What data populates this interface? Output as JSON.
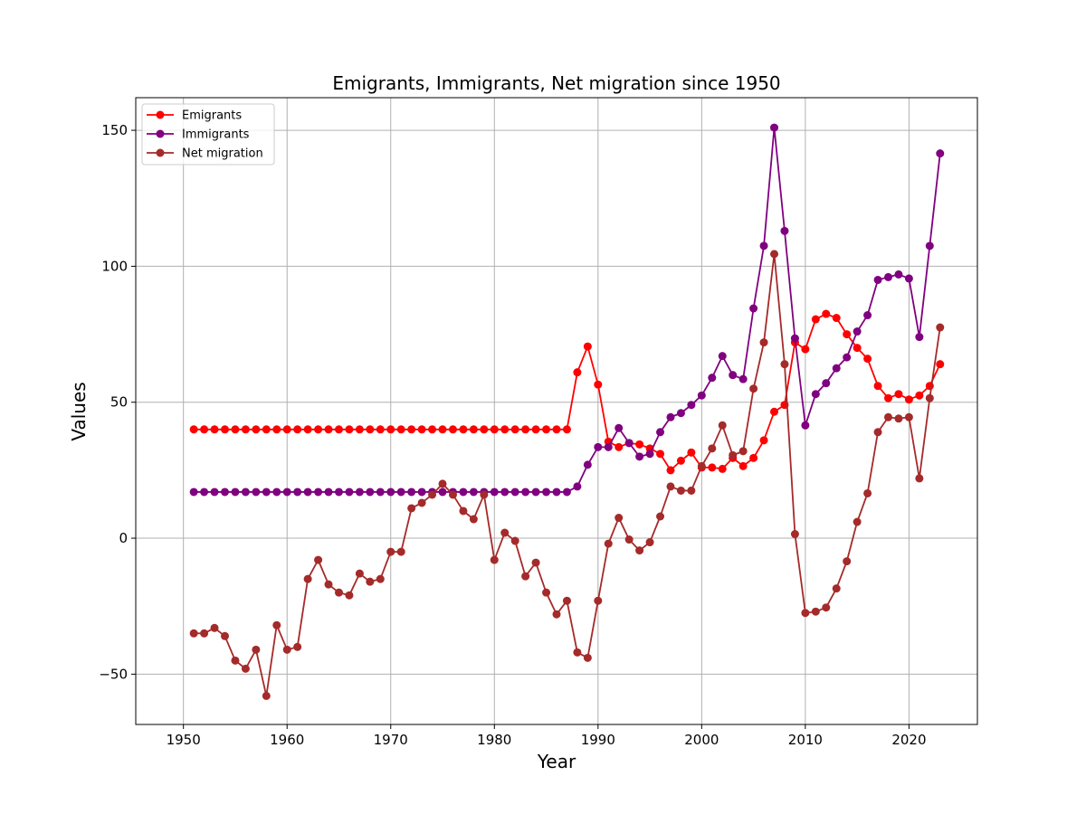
{
  "chart_data": {
    "type": "line",
    "title": "Emigrants, Immigrants, Net migration since 1950",
    "xlabel": "Year",
    "ylabel": "Values",
    "xlim": [
      1945.4,
      2026.6
    ],
    "ylim": [
      -68.5,
      162
    ],
    "xticks": [
      1950,
      1960,
      1970,
      1980,
      1990,
      2000,
      2010,
      2020
    ],
    "yticks": [
      -50,
      0,
      50,
      100,
      150
    ],
    "ytick_labels": [
      "−50",
      "0",
      "50",
      "100",
      "150"
    ],
    "grid": true,
    "legend_position": "top-left",
    "x": [
      1951,
      1952,
      1953,
      1954,
      1955,
      1956,
      1957,
      1958,
      1959,
      1960,
      1961,
      1962,
      1963,
      1964,
      1965,
      1966,
      1967,
      1968,
      1969,
      1970,
      1971,
      1972,
      1973,
      1974,
      1975,
      1976,
      1977,
      1978,
      1979,
      1980,
      1981,
      1982,
      1983,
      1984,
      1985,
      1986,
      1987,
      1988,
      1989,
      1990,
      1991,
      1992,
      1993,
      1994,
      1995,
      1996,
      1997,
      1998,
      1999,
      2000,
      2001,
      2002,
      2003,
      2004,
      2005,
      2006,
      2007,
      2008,
      2009,
      2010,
      2011,
      2012,
      2013,
      2014,
      2015,
      2016,
      2017,
      2018,
      2019,
      2020,
      2021,
      2022,
      2023
    ],
    "series": [
      {
        "name": "Emigrants",
        "color": "#ff0000",
        "values": [
          40,
          40,
          40,
          40,
          40,
          40,
          40,
          40,
          40,
          40,
          40,
          40,
          40,
          40,
          40,
          40,
          40,
          40,
          40,
          40,
          40,
          40,
          40,
          40,
          40,
          40,
          40,
          40,
          40,
          40,
          40,
          40,
          40,
          40,
          40,
          40,
          40,
          61,
          70.5,
          56.5,
          35.5,
          33.5,
          35,
          34.5,
          33,
          31,
          25,
          28.5,
          31.5,
          26,
          26,
          25.5,
          29.5,
          26.5,
          29.5,
          36,
          46.5,
          49,
          72,
          69.5,
          80.5,
          82.5,
          81,
          75,
          70,
          66,
          56,
          51.5,
          53,
          51,
          52.5,
          56,
          64
        ]
      },
      {
        "name": "Immigrants",
        "color": "#800080",
        "values": [
          17,
          17,
          17,
          17,
          17,
          17,
          17,
          17,
          17,
          17,
          17,
          17,
          17,
          17,
          17,
          17,
          17,
          17,
          17,
          17,
          17,
          17,
          17,
          17,
          17,
          17,
          17,
          17,
          17,
          17,
          17,
          17,
          17,
          17,
          17,
          17,
          17,
          19,
          27,
          33.5,
          33.5,
          40.5,
          35,
          30,
          31,
          39,
          44.5,
          46,
          49,
          52.5,
          59,
          67,
          60,
          58.5,
          84.5,
          107.5,
          151,
          113,
          73.5,
          41.5,
          53,
          57,
          62.5,
          66.5,
          76,
          82,
          95,
          96,
          97,
          95.5,
          74,
          107.5,
          141.5
        ]
      },
      {
        "name": "Net migration",
        "color": "#a52a2a",
        "values": [
          -35,
          -35,
          -33,
          -36,
          -45,
          -48,
          -41,
          -58,
          -32,
          -41,
          -40,
          -15,
          -8,
          -17,
          -20,
          -21,
          -13,
          -16,
          -15,
          -5,
          -5,
          11,
          13,
          16,
          20,
          16,
          10,
          7,
          16,
          -8,
          2,
          -1,
          -14,
          -9,
          -20,
          -28,
          -23,
          -42,
          -44,
          -23,
          -2,
          7.5,
          -0.5,
          -4.5,
          -1.5,
          8,
          19,
          17.5,
          17.5,
          26.5,
          33,
          41.5,
          30.5,
          32,
          55,
          72,
          104.5,
          64,
          1.5,
          -27.5,
          -27,
          -25.5,
          -18.5,
          -8.5,
          6,
          16.5,
          39,
          44.5,
          44,
          44.5,
          22,
          51.5,
          77.5
        ]
      }
    ]
  }
}
